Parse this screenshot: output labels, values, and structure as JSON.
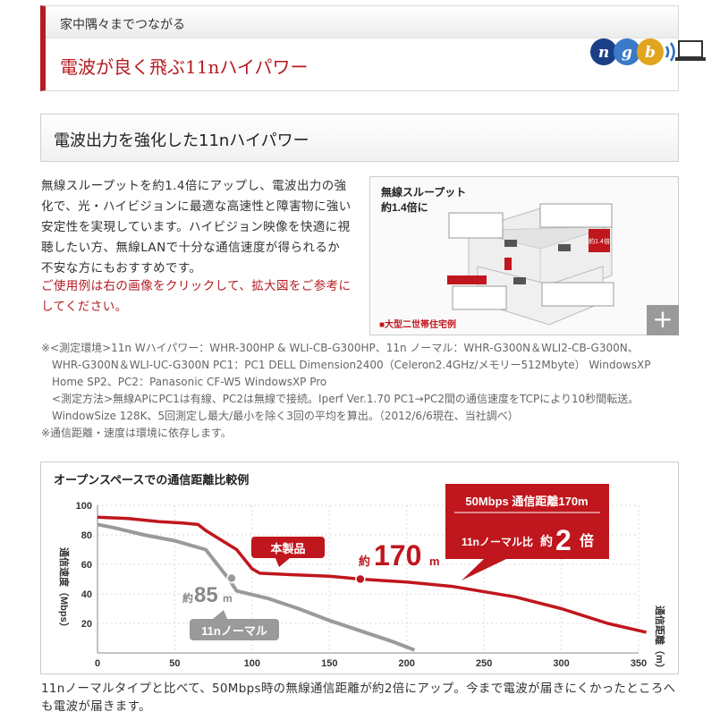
{
  "header": {
    "subtitle": "家中隅々までつながる",
    "title": "電波が良く飛ぶ11nハイパワー",
    "logo_text": "ngb"
  },
  "section": {
    "title": "電波出力を強化した11nハイパワー",
    "body": "無線スループットを約1.4倍にアップし、電波出力の強化で、光・ハイビジョンに最適な高速性と障害物に強い安定性を実現しています。ハイビジョン映像を快適に視聴したい方、無線LANで十分な通信速度が得られるか不安な方にもおすすめです。",
    "note": "ご使用例は右の画像をクリックして、拡大図をご参考にしてください。"
  },
  "thumbnail": {
    "heading_1": "無線スループット",
    "heading_2": "約1.4倍に",
    "caption": "■大型二世帯住宅例",
    "badge": "約1.4倍",
    "expand_icon": "plus-icon"
  },
  "notes": {
    "line1": "※<測定環境>11n Wハイパワー：WHR-300HP & WLI-CB-G300HP、11n ノーマル：WHR-G300N＆WLI2-CB-G300N、",
    "line2": "WHR-G300N＆WLI-UC-G300N PC1：PC1 DELL Dimension2400（Celeron2.4GHz/メモリー512Mbyte） WindowsXP",
    "line3": "Home SP2、PC2：Panasonic CF-W5 WindowsXP Pro",
    "line4": "<測定方法>無線APにPC1は有線、PC2は無線で接続。Iperf Ver.1.70 PC1→PC2間の通信速度をTCPにより10秒間転送。",
    "line5": "WindowSize 128K、5回測定し最大/最小を除く3回の平均を算出。（2012/6/6現在、当社調べ）",
    "line6": "※通信距離・速度は環境に依存します。"
  },
  "chart_data": {
    "type": "line",
    "title": "オープンスペースでの通信距離比較例",
    "ylabel": "通信速度（Mbps）",
    "xlabel": "通信距離（m）",
    "xlim": [
      0,
      350
    ],
    "ylim": [
      0,
      100
    ],
    "xticks": [
      0,
      50,
      100,
      150,
      200,
      250,
      300,
      350
    ],
    "yticks": [
      20,
      40,
      60,
      80,
      100
    ],
    "series": [
      {
        "name": "本製品",
        "color": "#c0161d",
        "points": [
          [
            0,
            92
          ],
          [
            20,
            91
          ],
          [
            40,
            89
          ],
          [
            55,
            88
          ],
          [
            65,
            87
          ],
          [
            70,
            83
          ],
          [
            90,
            70
          ],
          [
            100,
            57
          ],
          [
            105,
            54
          ],
          [
            125,
            53
          ],
          [
            150,
            52
          ],
          [
            170,
            50
          ],
          [
            200,
            48
          ],
          [
            230,
            45
          ],
          [
            270,
            38
          ],
          [
            300,
            30
          ],
          [
            330,
            20
          ],
          [
            355,
            14
          ]
        ]
      },
      {
        "name": "11nノーマル",
        "color": "#9a9a9a",
        "points": [
          [
            0,
            87
          ],
          [
            10,
            85
          ],
          [
            30,
            80
          ],
          [
            50,
            76
          ],
          [
            70,
            70
          ],
          [
            85,
            50
          ],
          [
            90,
            42
          ],
          [
            110,
            37
          ],
          [
            130,
            30
          ],
          [
            150,
            22
          ],
          [
            170,
            15
          ],
          [
            190,
            8
          ],
          [
            205,
            2
          ]
        ]
      }
    ],
    "annotations": {
      "product_label": "本製品",
      "normal_label": "11nノーマル",
      "product_reach_prefix": "約",
      "product_reach_value": "170",
      "product_reach_unit": "m",
      "normal_reach_prefix": "約",
      "normal_reach_value": "85",
      "normal_reach_unit": "m",
      "callout_line1": "50Mbps 通信距離170m",
      "callout_line2_a": "11nノーマル比",
      "callout_line2_b": "約",
      "callout_line2_c": "2",
      "callout_line2_d": "倍"
    },
    "markers": [
      [
        170,
        50
      ],
      [
        85,
        50
      ]
    ]
  },
  "caption": "11nノーマルタイプと比べて、50Mbps時の無線通信距離が約2倍にアップ。今まで電波が届きにくかったところへも電波が届きます。"
}
